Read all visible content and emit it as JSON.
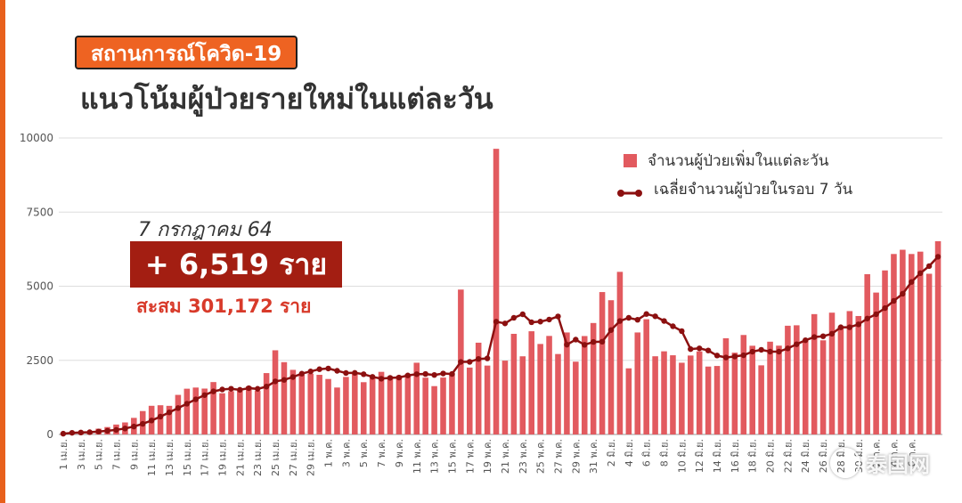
{
  "header": {
    "badge": "สถานการณ์โควิด-19",
    "title": "แนวโน้มผู้ป่วยรายใหม่ในแต่ละวัน"
  },
  "callout": {
    "date": "7 กรกฎาคม 64",
    "new_cases": "+ 6,519 ราย",
    "cumulative": "สะสม 301,172 ราย"
  },
  "legend": {
    "bars": "จำนวนผู้ป่วยเพิ่มในแต่ละวัน",
    "line": "เฉลี่ยจำนวนผู้ป่วยในรอบ 7 วัน"
  },
  "watermark": "泰国网",
  "colors": {
    "bar": "#e25a5f",
    "line": "#8c1010",
    "accent": "#ee6322"
  },
  "chart_data": {
    "type": "bar",
    "ylim": [
      0,
      10000
    ],
    "y_ticks": [
      "0",
      "2500",
      "5000",
      "7500",
      "10000"
    ],
    "grid": true,
    "legend_position": "top-right",
    "x_tick_labels": [
      "1 เม.ย.",
      "3 เม.ย.",
      "5 เม.ย.",
      "7 เม.ย.",
      "9 เม.ย.",
      "11 เม.ย.",
      "13 เม.ย.",
      "15 เม.ย.",
      "17 เม.ย.",
      "19 เม.ย.",
      "21 เม.ย.",
      "23 เม.ย.",
      "25 เม.ย.",
      "27 เม.ย.",
      "29 เม.ย.",
      "1 พ.ค.",
      "3 พ.ค.",
      "5 พ.ค.",
      "7 พ.ค.",
      "9 พ.ค.",
      "11 พ.ค.",
      "13 พ.ค.",
      "15 พ.ค.",
      "17 พ.ค.",
      "19 พ.ค.",
      "21 พ.ค.",
      "23 พ.ค.",
      "25 พ.ค.",
      "27 พ.ค.",
      "29 พ.ค.",
      "31 พ.ค.",
      "2 มิ.ย.",
      "4 มิ.ย.",
      "6 มิ.ย.",
      "8 มิ.ย.",
      "10 มิ.ย.",
      "12 มิ.ย.",
      "14 มิ.ย.",
      "16 มิ.ย.",
      "18 มิ.ย.",
      "20 มิ.ย.",
      "22 มิ.ย.",
      "24 มิ.ย.",
      "26 มิ.ย.",
      "28 มิ.ย.",
      "30 มิ.ย.",
      "2 ก.ค.",
      "4 ก.ค.",
      "6 ก.ค."
    ],
    "series": [
      {
        "name": "จำนวนผู้ป่วยเพิ่มในแต่ละวัน",
        "type": "bar",
        "values": [
          26,
          84,
          89,
          103,
          194,
          250,
          334,
          405,
          559,
          789,
          967,
          985,
          965,
          1335,
          1543,
          1582,
          1547,
          1767,
          1390,
          1458,
          1470,
          1623,
          1470,
          2070,
          2839,
          2438,
          2179,
          2012,
          2048,
          2011,
          1871,
          1583,
          1940,
          2041,
          1763,
          1911,
          2112,
          1941,
          1983,
          2044,
          2419,
          1915,
          1630,
          1919,
          2052,
          4887,
          2256,
          3095,
          2323,
          9635,
          2490,
          3394,
          2636,
          3481,
          3052,
          3323,
          2713,
          3440,
          2455,
          3319,
          3759,
          4803,
          4528,
          5485,
          2230,
          3440,
          3886,
          2637,
          2804,
          2671,
          2419,
          2662,
          2802,
          2290,
          2310,
          3245,
          2758,
          3355,
          2992,
          2331,
          3129,
          2995,
          3667,
          3682,
          3174,
          4059,
          3175,
          4108,
          3644,
          4161,
          3995,
          5406,
          4786,
          5533,
          6087,
          6230,
          6087,
          6166,
          5420,
          6519
        ],
        "style": "bars"
      },
      {
        "name": "เฉลี่ยจำนวนผู้ป่วยในรอบ 7 วัน",
        "type": "line",
        "values": [
          26,
          55,
          66,
          76,
          99,
          124,
          155,
          201,
          267,
          357,
          471,
          602,
          744,
          890,
          1037,
          1185,
          1328,
          1453,
          1518,
          1542,
          1505,
          1561,
          1539,
          1614,
          1790,
          1840,
          1937,
          2050,
          2126,
          2201,
          2225,
          2147,
          2073,
          2077,
          2032,
          1943,
          1880,
          1910,
          1920,
          1990,
          2034,
          2040,
          2006,
          2056,
          2040,
          2446,
          2449,
          2547,
          2566,
          3804,
          3745,
          3935,
          4054,
          3785,
          3806,
          3877,
          3981,
          3028,
          3199,
          3024,
          3120,
          3129,
          3521,
          3826,
          3934,
          3868,
          4062,
          3985,
          3828,
          3650,
          3485,
          2879,
          2904,
          2832,
          2662,
          2596,
          2630,
          2672,
          2792,
          2856,
          2794,
          2794,
          2903,
          3043,
          3178,
          3286,
          3313,
          3397,
          3615,
          3617,
          3714,
          3910,
          4057,
          4262,
          4506,
          4746,
          5144,
          5439,
          5678,
          5994
        ],
        "style": "line-with-markers"
      }
    ]
  }
}
